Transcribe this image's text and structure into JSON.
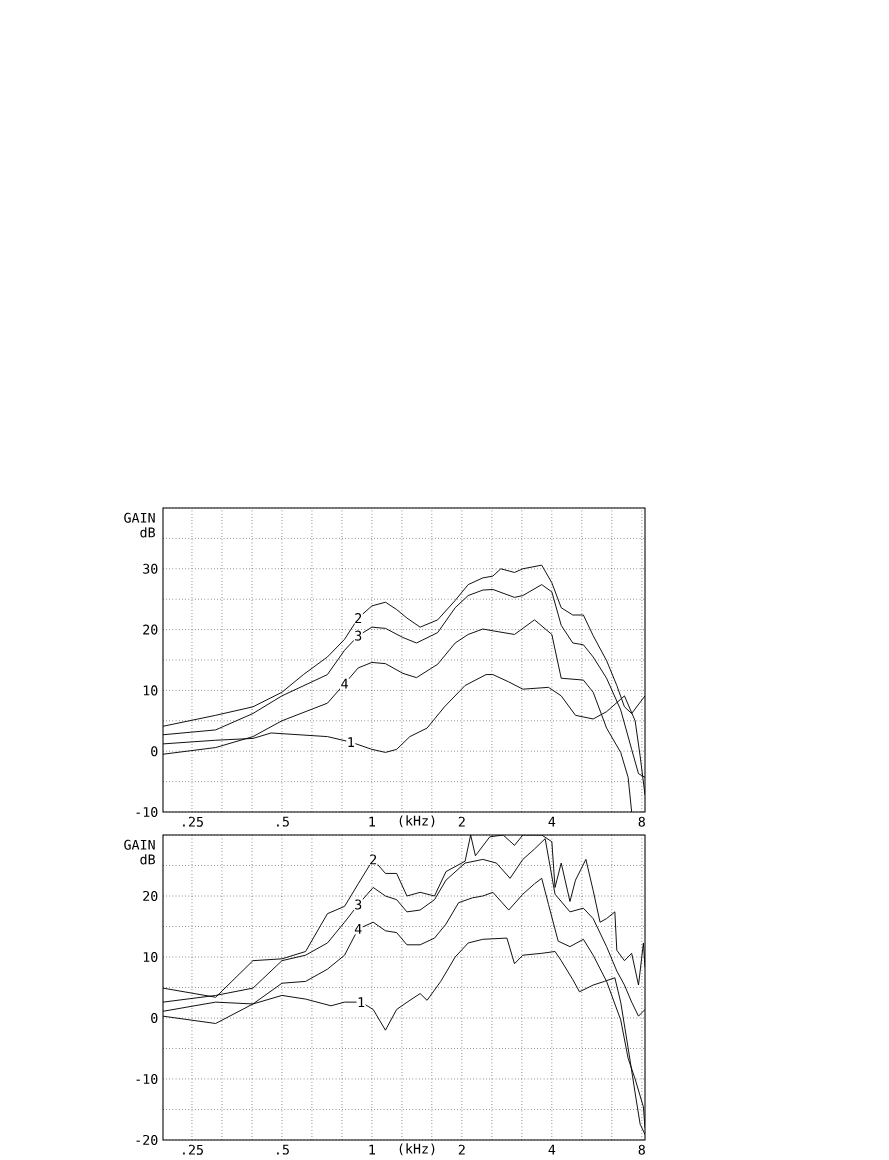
{
  "chart_data": [
    {
      "type": "line",
      "ylabel": "GAIN dB",
      "xlabel": "(kHz)",
      "log": "x",
      "grid": true,
      "marker": "none",
      "line_style": "solid",
      "xlim": [
        0.2,
        8.2
      ],
      "ylim": [
        -10,
        40
      ],
      "xticks": [
        {
          "value": 0.25,
          "label": ".25"
        },
        {
          "value": 0.315,
          "label": null
        },
        {
          "value": 0.397,
          "label": null
        },
        {
          "value": 0.5,
          "label": ".5"
        },
        {
          "value": 0.63,
          "label": null
        },
        {
          "value": 0.794,
          "label": null
        },
        {
          "value": 1,
          "label": "1"
        },
        {
          "value": 1.26,
          "label": null
        },
        {
          "value": 1.587,
          "label": null
        },
        {
          "value": 2,
          "label": "2"
        },
        {
          "value": 2.52,
          "label": null
        },
        {
          "value": 3.175,
          "label": null
        },
        {
          "value": 4,
          "label": "4"
        },
        {
          "value": 5.04,
          "label": null
        },
        {
          "value": 6.35,
          "label": null
        },
        {
          "value": 8,
          "label": "8"
        }
      ],
      "yticks": [
        -10,
        {
          "value": -5,
          "label": null
        },
        0,
        {
          "value": 5,
          "label": null
        },
        10,
        {
          "value": 15,
          "label": null
        },
        20,
        {
          "value": 25,
          "label": null
        },
        30,
        {
          "value": 35,
          "label": null
        },
        {
          "value": 40,
          "label": null
        }
      ],
      "series": [
        {
          "name": "2",
          "color": "#000000",
          "x": [
            0.2,
            0.3,
            0.4,
            0.5,
            0.59,
            0.71,
            0.81,
            0.9,
            1.0,
            1.11,
            1.21,
            1.31,
            1.45,
            1.66,
            1.9,
            2.1,
            2.35,
            2.54,
            2.7,
            3.0,
            3.2,
            3.7,
            4.0,
            4.3,
            4.7,
            5.1,
            5.5,
            6.1,
            6.6,
            7.0,
            7.4,
            8.2
          ],
          "values": [
            4.1,
            5.9,
            7.3,
            9.7,
            12.6,
            15.5,
            18.4,
            21.9,
            23.9,
            24.5,
            23.3,
            21.9,
            20.4,
            21.6,
            24.8,
            27.4,
            28.5,
            28.8,
            30,
            29.4,
            30,
            30.6,
            27.7,
            23.6,
            22.4,
            22.4,
            19,
            14.9,
            10.8,
            7.3,
            6.2,
            9.1
          ]
        },
        {
          "name": "3",
          "color": "#000000",
          "x": [
            0.2,
            0.3,
            0.4,
            0.5,
            0.71,
            0.81,
            0.9,
            1.0,
            1.11,
            1.27,
            1.41,
            1.66,
            1.9,
            2.1,
            2.35,
            2.54,
            3.0,
            3.2,
            3.7,
            4.0,
            4.3,
            4.7,
            5.1,
            5.5,
            6.1,
            6.8,
            7.4,
            7.8,
            8.2
          ],
          "values": [
            2.7,
            3.5,
            6.2,
            9.1,
            12.6,
            16.6,
            19,
            20.4,
            20.2,
            18.7,
            17.8,
            19.5,
            23.6,
            25.6,
            26.5,
            26.6,
            25.3,
            25.6,
            27.4,
            26.2,
            20.7,
            17.8,
            17.5,
            15.5,
            12,
            6.8,
            0.3,
            -3.7,
            -4.3
          ]
        },
        {
          "name": "4",
          "color": "#000000",
          "x": [
            0.2,
            0.3,
            0.4,
            0.5,
            0.71,
            0.81,
            0.9,
            1.0,
            1.11,
            1.27,
            1.41,
            1.66,
            1.9,
            2.1,
            2.35,
            2.54,
            3.0,
            3.5,
            4.0,
            4.3,
            5.1,
            5.5,
            6.1,
            6.8,
            7.2,
            7.4
          ],
          "values": [
            -0.5,
            0.6,
            2.4,
            5,
            7.9,
            11.1,
            13.7,
            14.6,
            14.4,
            12.8,
            12.1,
            14.3,
            17.8,
            19.2,
            20.1,
            19.8,
            19.2,
            21.6,
            19.2,
            12,
            11.7,
            9.7,
            3.8,
            -0.2,
            -4.3,
            -10
          ]
        },
        {
          "name": "1",
          "color": "#000000",
          "x": [
            0.2,
            0.3,
            0.4,
            0.46,
            0.71,
            0.85,
            1.0,
            1.11,
            1.21,
            1.34,
            1.53,
            1.75,
            2.05,
            2.41,
            2.54,
            2.87,
            3.2,
            3.9,
            4.3,
            4.8,
            5.5,
            6.1,
            7.0,
            7.6,
            7.9,
            8.2
          ],
          "values": [
            1.2,
            1.8,
            2.1,
            3.0,
            2.4,
            1.5,
            0.3,
            -0.2,
            0.3,
            2.4,
            3.8,
            7.3,
            10.8,
            12.6,
            12.6,
            11.4,
            10.2,
            10.5,
            9.1,
            5.9,
            5.3,
            6.5,
            9.1,
            5,
            -0.8,
            -7.2
          ]
        }
      ]
    },
    {
      "type": "line",
      "ylabel": "GAIN dB",
      "xlabel": "(kHz)",
      "log": "x",
      "grid": true,
      "marker": "none",
      "line_style": "solid",
      "xlim": [
        0.2,
        8.2
      ],
      "ylim": [
        -20,
        30
      ],
      "xticks": [
        {
          "value": 0.25,
          "label": ".25"
        },
        {
          "value": 0.315,
          "label": null
        },
        {
          "value": 0.397,
          "label": null
        },
        {
          "value": 0.5,
          "label": ".5"
        },
        {
          "value": 0.63,
          "label": null
        },
        {
          "value": 0.794,
          "label": null
        },
        {
          "value": 1,
          "label": "1"
        },
        {
          "value": 1.26,
          "label": null
        },
        {
          "value": 1.587,
          "label": null
        },
        {
          "value": 2,
          "label": "2"
        },
        {
          "value": 2.52,
          "label": null
        },
        {
          "value": 3.175,
          "label": null
        },
        {
          "value": 4,
          "label": "4"
        },
        {
          "value": 5.04,
          "label": null
        },
        {
          "value": 6.35,
          "label": null
        },
        {
          "value": 8,
          "label": "8"
        }
      ],
      "yticks": [
        -20,
        {
          "value": -15,
          "label": null
        },
        -10,
        {
          "value": -5,
          "label": null
        },
        0,
        {
          "value": 5,
          "label": null
        },
        10,
        {
          "value": 15,
          "label": null
        },
        20,
        {
          "value": 25,
          "label": null
        },
        {
          "value": 30,
          "label": null
        }
      ],
      "series": [
        {
          "name": "2",
          "color": "#000000",
          "x": [
            0.2,
            0.3,
            0.4,
            0.5,
            0.6,
            0.71,
            0.81,
            0.9,
            1.01,
            1.11,
            1.21,
            1.31,
            1.45,
            1.62,
            1.77,
            2.05,
            2.14,
            2.22,
            2.48,
            2.75,
            3.0,
            3.2,
            3.7,
            4.0,
            4.1,
            4.3,
            4.6,
            4.8,
            5.2,
            5.5,
            5.8,
            6.1,
            6.5,
            6.6,
            7.0,
            7.4,
            7.8,
            8.1,
            8.2
          ],
          "values": [
            4.9,
            3.4,
            9.4,
            9.7,
            10.9,
            17.1,
            18.3,
            22,
            26,
            23.7,
            23.7,
            20,
            20.6,
            20,
            24,
            25.7,
            30,
            26.6,
            29.7,
            30,
            28.3,
            30,
            30,
            28.9,
            21.4,
            25.4,
            19.1,
            22.6,
            26,
            20.9,
            15.7,
            16.3,
            17.4,
            11.1,
            9.4,
            10.6,
            5.4,
            12.3,
            8.3
          ]
        },
        {
          "name": "3",
          "color": "#000000",
          "x": [
            0.2,
            0.3,
            0.4,
            0.5,
            0.6,
            0.71,
            0.81,
            0.9,
            1.01,
            1.11,
            1.21,
            1.31,
            1.45,
            1.62,
            1.77,
            2.05,
            2.35,
            2.61,
            2.9,
            3.2,
            3.5,
            3.8,
            4.1,
            4.6,
            5.1,
            5.5,
            6.1,
            6.6,
            7.0,
            7.4,
            7.8,
            8.2
          ],
          "values": [
            2.6,
            3.7,
            4.9,
            9.4,
            10.3,
            12.3,
            15.7,
            18.6,
            21.4,
            20,
            19.4,
            17.4,
            17.7,
            19.4,
            22.6,
            25.4,
            26,
            25.4,
            22.9,
            26,
            27.7,
            29.4,
            20.3,
            17.4,
            18,
            16.3,
            11.7,
            7.7,
            5.4,
            2.6,
            0.3,
            1.4
          ]
        },
        {
          "name": "4",
          "color": "#000000",
          "x": [
            0.2,
            0.3,
            0.4,
            0.5,
            0.6,
            0.71,
            0.81,
            0.9,
            1.01,
            1.11,
            1.21,
            1.31,
            1.45,
            1.62,
            1.77,
            1.95,
            2.17,
            2.35,
            2.54,
            2.87,
            3.2,
            3.5,
            3.7,
            3.9,
            4.2,
            4.6,
            5.1,
            5.5,
            6.1,
            6.8,
            7.2,
            7.6,
            8.1,
            8.2
          ],
          "values": [
            0.3,
            -0.9,
            2.3,
            5.7,
            6,
            8,
            10.3,
            14.6,
            15.7,
            14.3,
            14,
            12,
            12,
            13.1,
            15.4,
            18.9,
            19.7,
            20,
            20.6,
            17.7,
            20.3,
            22,
            22.9,
            18.6,
            12.6,
            11.7,
            12.9,
            10.3,
            6,
            -0.3,
            -6.6,
            -10,
            -14.6,
            -18
          ]
        },
        {
          "name": "1",
          "color": "#000000",
          "x": [
            0.2,
            0.3,
            0.4,
            0.5,
            0.6,
            0.73,
            0.81,
            0.92,
            1.01,
            1.11,
            1.21,
            1.34,
            1.45,
            1.53,
            1.7,
            1.9,
            2.1,
            2.35,
            2.83,
            3.0,
            3.2,
            3.7,
            4.1,
            4.3,
            4.7,
            4.95,
            5.5,
            6.0,
            6.5,
            6.8,
            7.2,
            7.6,
            7.9,
            8.2
          ],
          "values": [
            1.1,
            2.6,
            2.3,
            3.7,
            3.1,
            2,
            2.6,
            2.6,
            1.4,
            -2,
            1.4,
            2.9,
            4,
            2.9,
            6,
            10,
            12.3,
            12.9,
            13.1,
            8.9,
            10.3,
            10.6,
            10.9,
            9.4,
            6.3,
            4.3,
            5.4,
            6,
            6.6,
            2.6,
            -4.9,
            -12.3,
            -17.4,
            -19.1
          ]
        }
      ]
    }
  ]
}
